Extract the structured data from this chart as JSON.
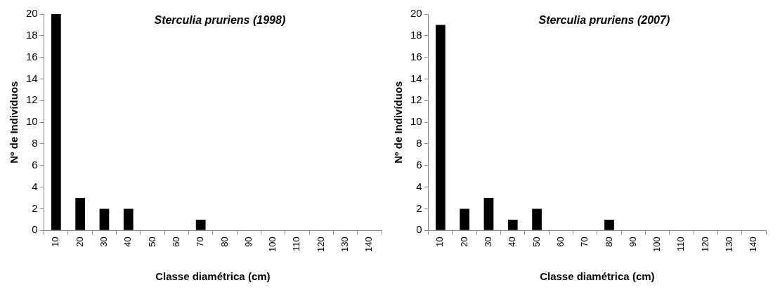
{
  "chart_data": [
    {
      "type": "bar",
      "title": "Sterculia pruriens (1998)",
      "xlabel": "Classe diamétrica (cm)",
      "ylabel": "Nº de Indivíduos",
      "categories": [
        "10",
        "20",
        "30",
        "40",
        "50",
        "60",
        "70",
        "80",
        "90",
        "100",
        "110",
        "120",
        "130",
        "140"
      ],
      "values": [
        20,
        3,
        2,
        2,
        0,
        0,
        1,
        0,
        0,
        0,
        0,
        0,
        0,
        0
      ],
      "color": "#000000",
      "ylim": [
        0,
        20
      ],
      "yticks": [
        0,
        2,
        4,
        6,
        8,
        10,
        12,
        14,
        16,
        18,
        20
      ],
      "grid": false,
      "legend": false
    },
    {
      "type": "bar",
      "title": "Sterculia pruriens (2007)",
      "xlabel": "Classe diamétrica (cm)",
      "ylabel": "Nº de Indivíduos",
      "categories": [
        "10",
        "20",
        "30",
        "40",
        "50",
        "60",
        "70",
        "80",
        "90",
        "100",
        "110",
        "120",
        "130",
        "140"
      ],
      "values": [
        19,
        2,
        3,
        1,
        2,
        0,
        0,
        1,
        0,
        0,
        0,
        0,
        0,
        0
      ],
      "color": "#000000",
      "ylim": [
        0,
        20
      ],
      "yticks": [
        0,
        2,
        4,
        6,
        8,
        10,
        12,
        14,
        16,
        18,
        20
      ],
      "grid": false,
      "legend": false
    }
  ]
}
